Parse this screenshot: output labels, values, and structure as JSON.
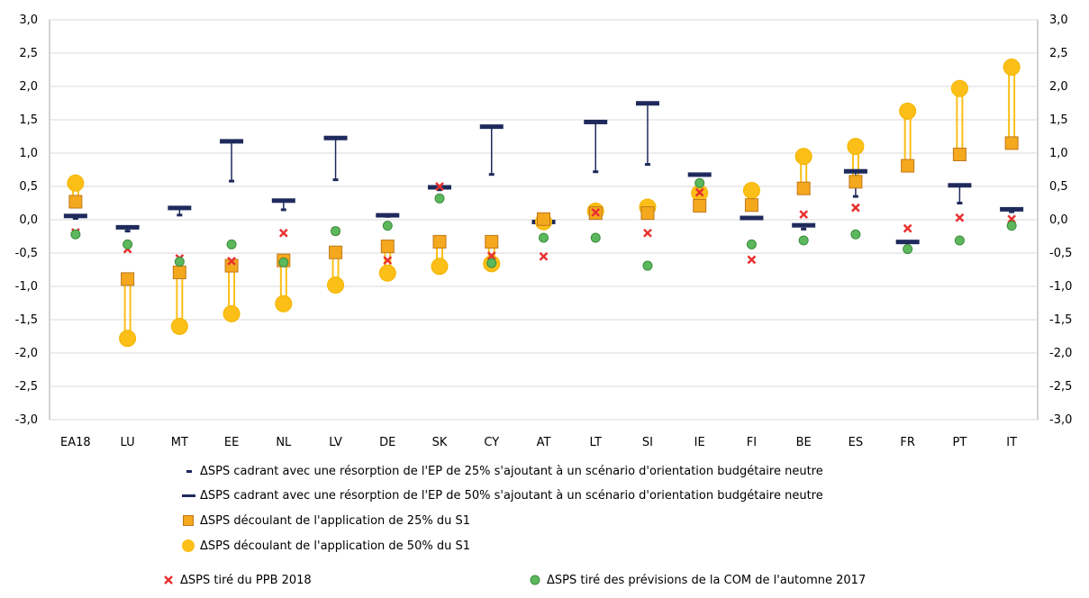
{
  "chart_data": {
    "type": "scatter",
    "categories": [
      "EA18",
      "LU",
      "MT",
      "EE",
      "NL",
      "LV",
      "DE",
      "SK",
      "CY",
      "AT",
      "LT",
      "SI",
      "IE",
      "FI",
      "BE",
      "ES",
      "FR",
      "PT",
      "IT"
    ],
    "ylim": [
      -3.0,
      3.0
    ],
    "yticks": [
      "3,0",
      "2,5",
      "2,0",
      "1,5",
      "1,0",
      "0,5",
      "0,0",
      "-0,5",
      "-1,0",
      "-1,5",
      "-2,0",
      "-2,5",
      "-3,0"
    ],
    "grid": true,
    "secondary_axis": true,
    "legend_position": "bottom",
    "series": [
      {
        "name": "ΔSPS cadrant avec une résorption de l'EP de 25% s'ajoutant à un scénario d'orientation budgétaire neutre",
        "marker": "short-dash",
        "color": "#1f2a5c",
        "values": [
          0.02,
          -0.17,
          0.07,
          0.58,
          0.15,
          0.6,
          0.05,
          0.45,
          0.68,
          -0.1,
          0.72,
          0.83,
          0.67,
          0.02,
          -0.14,
          0.35,
          -0.4,
          0.25,
          0.12
        ]
      },
      {
        "name": "ΔSPS cadrant avec une résorption de l'EP de 50% s'ajoutant à un scénario d'orientation budgétaire neutre",
        "marker": "long-dash",
        "color": "#1f2a5c",
        "values": [
          0.05,
          -0.12,
          0.17,
          1.17,
          0.28,
          1.22,
          0.06,
          0.48,
          1.39,
          -0.04,
          1.46,
          1.74,
          0.67,
          0.02,
          -0.09,
          0.72,
          -0.34,
          0.51,
          0.15
        ]
      },
      {
        "name": "ΔSPS découlant de l'application de 25% du S1",
        "marker": "square",
        "color": "#f4a81d",
        "values": [
          0.27,
          -0.89,
          -0.79,
          -0.69,
          -0.61,
          -0.49,
          -0.4,
          -0.33,
          -0.33,
          0.01,
          0.1,
          0.1,
          0.21,
          0.22,
          0.47,
          0.57,
          0.81,
          0.98,
          1.15
        ]
      },
      {
        "name": "ΔSPS découlant de l'application de 50% du S1",
        "marker": "circle",
        "color": "#fbbf17",
        "values": [
          0.55,
          -1.78,
          -1.6,
          -1.41,
          -1.26,
          -0.98,
          -0.8,
          -0.7,
          -0.66,
          -0.03,
          0.13,
          0.19,
          0.4,
          0.44,
          0.95,
          1.1,
          1.63,
          1.97,
          2.29
        ]
      },
      {
        "name": "ΔSPS tiré du PPB 2018",
        "marker": "x",
        "color": "#e8312f",
        "values": [
          -0.19,
          -0.44,
          -0.58,
          -0.62,
          -0.2,
          -0.17,
          -0.61,
          0.5,
          -0.54,
          -0.55,
          0.11,
          -0.2,
          0.41,
          -0.6,
          0.08,
          0.18,
          -0.13,
          0.03,
          0.01
        ]
      },
      {
        "name": "ΔSPS tiré des prévisions de la COM de l'automne 2017",
        "marker": "dot",
        "color": "#5cb85c",
        "values": [
          -0.22,
          -0.37,
          -0.63,
          -0.37,
          -0.64,
          -0.17,
          -0.09,
          0.32,
          -0.65,
          -0.27,
          -0.27,
          -0.69,
          0.55,
          -0.37,
          -0.31,
          -0.22,
          -0.44,
          -0.31,
          -0.09
        ]
      }
    ]
  }
}
